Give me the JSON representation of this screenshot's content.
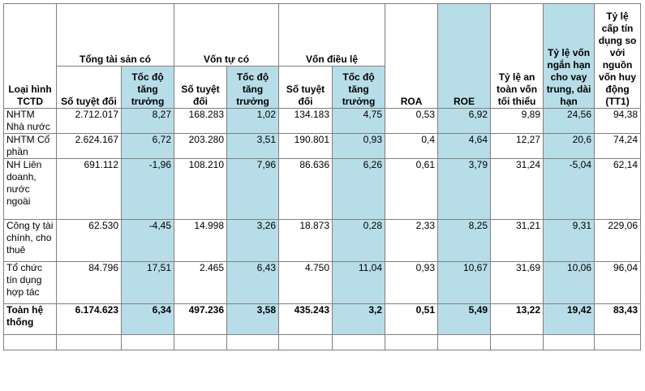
{
  "header": {
    "col_type": "Loại hình TCTD",
    "group_assets": "Tổng tài sản có",
    "group_equity": "Vốn tự có",
    "group_charter": "Vốn điều lệ",
    "absolute": "Số tuyệt đối",
    "growth": "Tốc độ tăng trưởng",
    "roa": "ROA",
    "roe": "ROE",
    "car": "Tỷ lệ an toàn vốn tối thiểu",
    "short_long": "Tỷ lệ vốn ngắn hạn cho vay trung, dài hạn",
    "ldr": "Tỷ lệ cấp tín dụng so với nguồn vốn huy động (TT1)"
  },
  "rows": [
    {
      "name": "NHTM Nhà nước",
      "assets_abs": "2.712.017",
      "assets_growth": "8,27",
      "equity_abs": "168.283",
      "equity_growth": "1,02",
      "charter_abs": "134.183",
      "charter_growth": "4,75",
      "roa": "0,53",
      "roe": "6,92",
      "car": "9,89",
      "short_long": "24,56",
      "ldr": "94,38"
    },
    {
      "name": "NHTM Cổ phần",
      "assets_abs": "2.624.167",
      "assets_growth": "6,72",
      "equity_abs": "203.280",
      "equity_growth": "3,51",
      "charter_abs": "190.801",
      "charter_growth": "0,93",
      "roa": "0,4",
      "roe": "4,64",
      "car": "12,27",
      "short_long": "20,6",
      "ldr": "74,24"
    },
    {
      "name": "NH Liên doanh, nước ngoài",
      "assets_abs": "691.112",
      "assets_growth": "-1,96",
      "equity_abs": "108.210",
      "equity_growth": "7,96",
      "charter_abs": "86.636",
      "charter_growth": "6,26",
      "roa": "0,61",
      "roe": "3,79",
      "car": "31,24",
      "short_long": "-5,04",
      "ldr": "62,14"
    },
    {
      "name": "Công ty tài chính, cho thuê",
      "assets_abs": "62.530",
      "assets_growth": "-4,45",
      "equity_abs": "14.998",
      "equity_growth": "3,26",
      "charter_abs": "18.873",
      "charter_growth": "0,28",
      "roa": "2,33",
      "roe": "8,25",
      "car": "31,21",
      "short_long": "9,31",
      "ldr": "229,06"
    },
    {
      "name": "Tổ chức tín dụng hợp tác",
      "assets_abs": "84.796",
      "assets_growth": "17,51",
      "equity_abs": "2.465",
      "equity_growth": "6,43",
      "charter_abs": "4.750",
      "charter_growth": "11,04",
      "roa": "0,93",
      "roe": "10,67",
      "car": "31,69",
      "short_long": "10,06",
      "ldr": "96,04"
    },
    {
      "name": "Toàn hệ thống",
      "assets_abs": "6.174.623",
      "assets_growth": "6,34",
      "equity_abs": "497.236",
      "equity_growth": "3,58",
      "charter_abs": "435.243",
      "charter_growth": "3,2",
      "roa": "0,51",
      "roe": "5,49",
      "car": "13,22",
      "short_long": "19,42",
      "ldr": "83,43"
    }
  ]
}
